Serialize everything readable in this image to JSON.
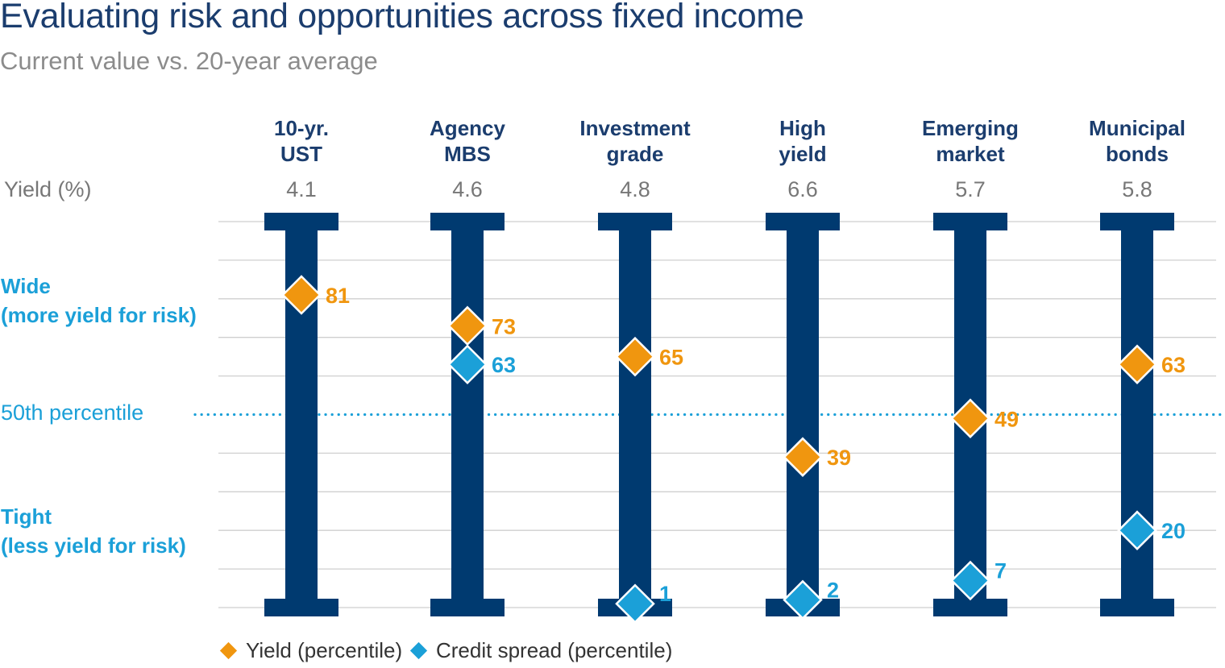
{
  "chart_data": {
    "type": "scatter",
    "title": "Evaluating risk and opportunities across fixed income",
    "subtitle": "Current value vs. 20-year average",
    "yield_header": "Yield (%)",
    "y_range": [
      0,
      100
    ],
    "reference_line": {
      "value": 50,
      "label": "50th percentile"
    },
    "zones": {
      "wide": [
        "Wide",
        "(more yield for risk)"
      ],
      "tight": [
        "Tight",
        "(less yield for risk)"
      ]
    },
    "categories": [
      {
        "label": [
          "10-yr.",
          "UST"
        ],
        "yield": "4.1"
      },
      {
        "label": [
          "Agency",
          "MBS"
        ],
        "yield": "4.6"
      },
      {
        "label": [
          "Investment",
          "grade"
        ],
        "yield": "4.8"
      },
      {
        "label": [
          "High",
          "yield"
        ],
        "yield": "6.6"
      },
      {
        "label": [
          "Emerging",
          "market"
        ],
        "yield": "5.7"
      },
      {
        "label": [
          "Municipal",
          "bonds"
        ],
        "yield": "5.8"
      }
    ],
    "series": [
      {
        "name": "Yield (percentile)",
        "color": "#f0960f",
        "values": [
          81,
          73,
          65,
          39,
          49,
          63
        ]
      },
      {
        "name": "Credit spread (percentile)",
        "color": "#1ba0d8",
        "values": [
          null,
          63,
          1,
          2,
          7,
          20
        ]
      }
    ],
    "grid": true,
    "legend_position": "bottom-left"
  },
  "colors": {
    "bar": "#003a70",
    "grid": "#cfcfcf"
  }
}
